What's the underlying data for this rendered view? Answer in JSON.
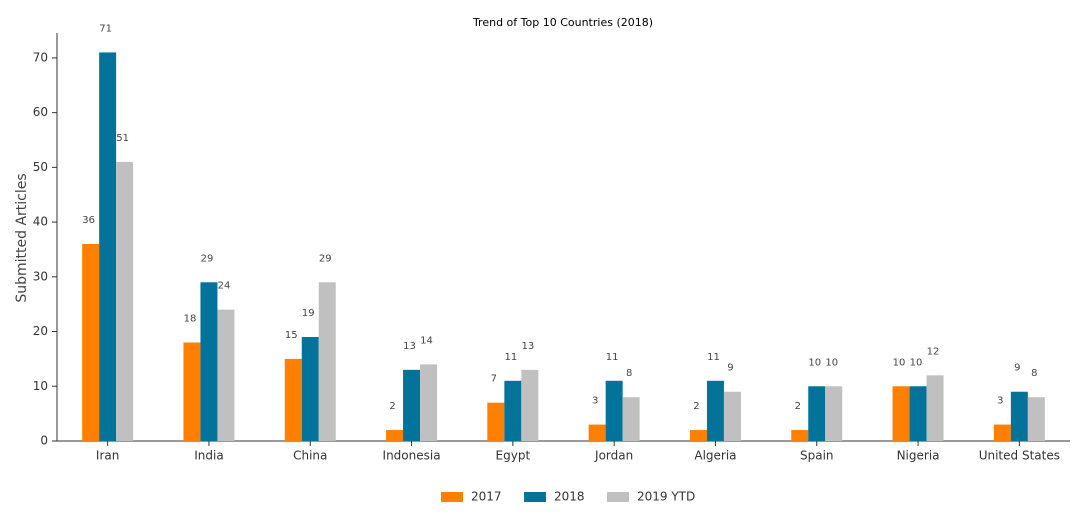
{
  "chart_data": {
    "type": "bar",
    "title": "Trend of Top 10 Countries (2018)",
    "y_label": "Submitted Articles",
    "categories": [
      "Iran",
      "India",
      "China",
      "Indonesia",
      "Egypt",
      "Jordan",
      "Algeria",
      "Spain",
      "Nigeria",
      "United States"
    ],
    "series": [
      {
        "name": "2017",
        "color": "#ff8000",
        "values": [
          36,
          18,
          15,
          2,
          7,
          3,
          2,
          2,
          10,
          3
        ]
      },
      {
        "name": "2018",
        "color": "#04739a",
        "values": [
          71,
          29,
          19,
          13,
          11,
          11,
          11,
          10,
          10,
          9
        ]
      },
      {
        "name": "2019 YTD",
        "color": "#c0c0c0",
        "values": [
          51,
          24,
          29,
          14,
          13,
          8,
          9,
          10,
          12,
          8
        ]
      }
    ],
    "ylim": [
      0,
      74.55
    ],
    "yticks": [
      0,
      10,
      20,
      30,
      40,
      50,
      60,
      70
    ],
    "grid": false,
    "legend": "bottom",
    "data_labels": true
  }
}
